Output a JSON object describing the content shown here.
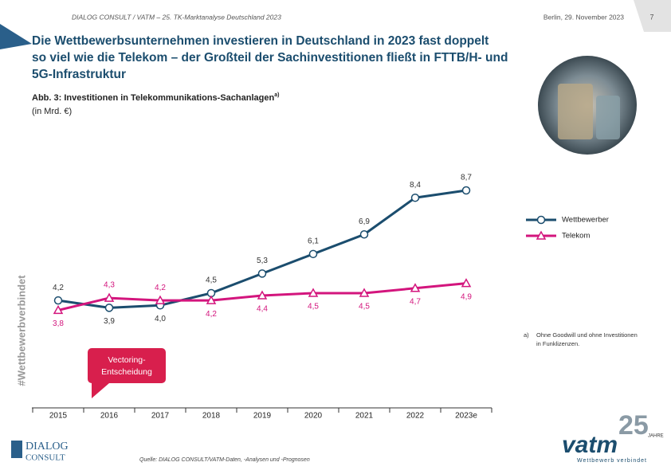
{
  "header": {
    "left": "DIALOG CONSULT / VATM – 25. TK-Marktanalyse Deutschland 2023",
    "date": "Berlin, 29. November 2023",
    "page": "7"
  },
  "title_lines": [
    "Die Wettbewerbsunternehmen investieren in Deutschland in 2023 fast doppelt",
    "so viel wie die Telekom – der Großteil der Sachinvestitionen fließt in FTTB/H- und",
    "5G-Infrastruktur"
  ],
  "side_text": "#Wettbewerbverbindet",
  "chart_data": {
    "type": "line",
    "title": "Abb. 3: Investitionen in Telekommunikations-Sachanlagen",
    "title_note": "a)",
    "subtitle": "(in Mrd. €)",
    "categories": [
      "2015",
      "2016",
      "2017",
      "2018",
      "2019",
      "2020",
      "2021",
      "2022",
      "2023e"
    ],
    "series": [
      {
        "name": "Wettbewerber",
        "color": "#1b4d6e",
        "marker": "circle",
        "values": [
          4.2,
          3.9,
          4.0,
          4.5,
          5.3,
          6.1,
          6.9,
          8.4,
          8.7
        ],
        "value_labels": [
          "4,2",
          "3,9",
          "4,0",
          "4,5",
          "5,3",
          "6,1",
          "6,9",
          "8,4",
          "8,7"
        ]
      },
      {
        "name": "Telekom",
        "color": "#d3157d",
        "marker": "triangle",
        "values": [
          3.8,
          4.3,
          4.2,
          4.2,
          4.4,
          4.5,
          4.5,
          4.7,
          4.9
        ],
        "value_labels": [
          "3,8",
          "4,3",
          "4,2",
          "4,2",
          "4,4",
          "4,5",
          "4,5",
          "4,7",
          "4,9"
        ]
      }
    ],
    "annotation": {
      "lines": [
        "Vectoring-",
        "Entscheidung"
      ],
      "category": "2016"
    },
    "footnote": [
      "a)",
      "Ohne Goodwill und ohne Investitionen",
      "in Funklizenzen."
    ],
    "source": "Quelle: DIALOG CONSULT/VATM-Daten, -Analysen und -Prognosen"
  },
  "logos": {
    "dialog": [
      "DIALOG",
      "CONSULT"
    ],
    "vatm": "vatm",
    "anniversary": "25",
    "anniversary_word": "JAHRE",
    "slogan": "Wettbewerb verbindet"
  }
}
